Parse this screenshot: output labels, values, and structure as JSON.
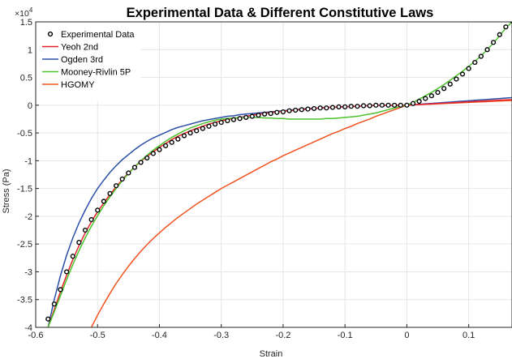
{
  "chart_data": {
    "type": "line",
    "title": "Experimental Data & Different Constitutive Laws",
    "xlabel": "Strain",
    "ylabel": "Stress (Pa)",
    "y_exponent_label": "×10",
    "y_exponent_power": "4",
    "xlim": [
      -0.6,
      0.17
    ],
    "ylim": [
      -4,
      1.5
    ],
    "xticks": [
      -0.6,
      -0.5,
      -0.4,
      -0.3,
      -0.2,
      -0.1,
      0,
      0.1
    ],
    "xtick_labels": [
      "-0.6",
      "-0.5",
      "-0.4",
      "-0.3",
      "-0.2",
      "-0.1",
      "0",
      "0.1"
    ],
    "yticks": [
      1.5,
      1,
      0.5,
      0,
      -0.5,
      -1,
      -1.5,
      -2,
      -2.5,
      -3,
      -3.5,
      -4
    ],
    "ytick_labels": [
      "1.5",
      "1",
      "0.5",
      "0",
      "-0.5",
      "-1",
      "-1.5",
      "-2",
      "-2.5",
      "-3",
      "-3.5",
      "-4"
    ],
    "grid": true,
    "legend_position": "top-left",
    "y_scale_note": "values in units of 10^4",
    "series": [
      {
        "name": "Experimental Data",
        "style": "markers",
        "color": "#000000",
        "marker_fill": "#ffffff",
        "x": [
          -0.58,
          -0.57,
          -0.56,
          -0.55,
          -0.54,
          -0.53,
          -0.52,
          -0.51,
          -0.5,
          -0.49,
          -0.48,
          -0.47,
          -0.46,
          -0.45,
          -0.44,
          -0.43,
          -0.42,
          -0.41,
          -0.4,
          -0.39,
          -0.38,
          -0.37,
          -0.36,
          -0.35,
          -0.34,
          -0.33,
          -0.32,
          -0.31,
          -0.3,
          -0.29,
          -0.28,
          -0.27,
          -0.26,
          -0.25,
          -0.24,
          -0.23,
          -0.22,
          -0.21,
          -0.2,
          -0.19,
          -0.18,
          -0.17,
          -0.16,
          -0.15,
          -0.14,
          -0.13,
          -0.12,
          -0.11,
          -0.1,
          -0.09,
          -0.08,
          -0.07,
          -0.06,
          -0.05,
          -0.04,
          -0.03,
          -0.02,
          -0.01,
          0,
          0.01,
          0.02,
          0.03,
          0.04,
          0.05,
          0.06,
          0.07,
          0.08,
          0.09,
          0.1,
          0.11,
          0.12,
          0.13,
          0.14,
          0.15,
          0.16,
          0.17
        ],
        "y": [
          -3.85,
          -3.58,
          -3.32,
          -3.0,
          -2.72,
          -2.47,
          -2.25,
          -2.06,
          -1.89,
          -1.73,
          -1.59,
          -1.45,
          -1.33,
          -1.22,
          -1.12,
          -1.03,
          -0.95,
          -0.87,
          -0.8,
          -0.73,
          -0.67,
          -0.61,
          -0.55,
          -0.5,
          -0.46,
          -0.42,
          -0.38,
          -0.34,
          -0.31,
          -0.28,
          -0.26,
          -0.24,
          -0.22,
          -0.2,
          -0.18,
          -0.16,
          -0.15,
          -0.13,
          -0.12,
          -0.1,
          -0.09,
          -0.08,
          -0.07,
          -0.06,
          -0.05,
          -0.05,
          -0.04,
          -0.03,
          -0.03,
          -0.02,
          -0.02,
          -0.01,
          -0.01,
          0.0,
          0.0,
          0.0,
          0.0,
          0.0,
          0.0,
          0.03,
          0.07,
          0.12,
          0.17,
          0.23,
          0.3,
          0.38,
          0.47,
          0.56,
          0.66,
          0.77,
          0.88,
          1.0,
          1.13,
          1.27,
          1.41,
          1.52
        ]
      },
      {
        "name": "Yeoh 2nd",
        "style": "line",
        "color": "#e6232b",
        "x": [
          -0.58,
          -0.57,
          -0.56,
          -0.55,
          -0.54,
          -0.53,
          -0.52,
          -0.51,
          -0.5,
          -0.49,
          -0.48,
          -0.47,
          -0.46,
          -0.45,
          -0.44,
          -0.43,
          -0.42,
          -0.41,
          -0.4,
          -0.39,
          -0.38,
          -0.37,
          -0.36,
          -0.35,
          -0.34,
          -0.33,
          -0.32,
          -0.31,
          -0.3,
          -0.29,
          -0.28,
          -0.27,
          -0.26,
          -0.25,
          -0.24,
          -0.23,
          -0.22,
          -0.21,
          -0.2,
          -0.19,
          -0.18,
          -0.17,
          -0.16,
          -0.15,
          -0.14,
          -0.13,
          -0.12,
          -0.11,
          -0.1,
          -0.09,
          -0.08,
          -0.07,
          -0.06,
          -0.05,
          -0.04,
          -0.03,
          -0.02,
          -0.01,
          0,
          0.01,
          0.02,
          0.03,
          0.04,
          0.05,
          0.06,
          0.07,
          0.08,
          0.09,
          0.1,
          0.11,
          0.12,
          0.13,
          0.14,
          0.15,
          0.16,
          0.17
        ],
        "y": [
          -4.0,
          -3.68,
          -3.36,
          -3.06,
          -2.78,
          -2.53,
          -2.3,
          -2.1,
          -1.92,
          -1.76,
          -1.61,
          -1.47,
          -1.34,
          -1.22,
          -1.11,
          -1.01,
          -0.92,
          -0.84,
          -0.76,
          -0.69,
          -0.62,
          -0.56,
          -0.51,
          -0.46,
          -0.42,
          -0.38,
          -0.34,
          -0.31,
          -0.28,
          -0.26,
          -0.24,
          -0.22,
          -0.2,
          -0.18,
          -0.16,
          -0.15,
          -0.13,
          -0.12,
          -0.11,
          -0.1,
          -0.09,
          -0.08,
          -0.07,
          -0.06,
          -0.05,
          -0.04,
          -0.04,
          -0.03,
          -0.03,
          -0.02,
          -0.02,
          -0.01,
          -0.01,
          0.0,
          0.0,
          0.0,
          0.0,
          0.0,
          0.0,
          0.006,
          0.012,
          0.018,
          0.024,
          0.03,
          0.036,
          0.042,
          0.048,
          0.054,
          0.06,
          0.066,
          0.072,
          0.078,
          0.084,
          0.09,
          0.096,
          0.1
        ]
      },
      {
        "name": "Ogden 3rd",
        "style": "line",
        "color": "#2b4fa8",
        "x": [
          -0.58,
          -0.57,
          -0.56,
          -0.55,
          -0.54,
          -0.53,
          -0.52,
          -0.51,
          -0.5,
          -0.49,
          -0.48,
          -0.47,
          -0.46,
          -0.45,
          -0.44,
          -0.43,
          -0.42,
          -0.41,
          -0.4,
          -0.39,
          -0.38,
          -0.37,
          -0.36,
          -0.35,
          -0.34,
          -0.33,
          -0.32,
          -0.31,
          -0.3,
          -0.29,
          -0.28,
          -0.27,
          -0.26,
          -0.25,
          -0.24,
          -0.23,
          -0.22,
          -0.21,
          -0.2,
          -0.19,
          -0.18,
          -0.17,
          -0.16,
          -0.15,
          -0.14,
          -0.13,
          -0.12,
          -0.11,
          -0.1,
          -0.09,
          -0.08,
          -0.07,
          -0.06,
          -0.05,
          -0.04,
          -0.03,
          -0.02,
          -0.01,
          0,
          0.01,
          0.02,
          0.03,
          0.04,
          0.05,
          0.06,
          0.07,
          0.08,
          0.09,
          0.1,
          0.11,
          0.12,
          0.13,
          0.14,
          0.15,
          0.16,
          0.17
        ],
        "y": [
          -4.0,
          -3.5,
          -3.07,
          -2.7,
          -2.39,
          -2.12,
          -1.89,
          -1.68,
          -1.5,
          -1.35,
          -1.21,
          -1.09,
          -0.98,
          -0.89,
          -0.8,
          -0.72,
          -0.65,
          -0.59,
          -0.54,
          -0.49,
          -0.44,
          -0.4,
          -0.37,
          -0.34,
          -0.31,
          -0.28,
          -0.26,
          -0.24,
          -0.22,
          -0.2,
          -0.19,
          -0.17,
          -0.16,
          -0.15,
          -0.14,
          -0.13,
          -0.12,
          -0.11,
          -0.1,
          -0.09,
          -0.08,
          -0.07,
          -0.06,
          -0.06,
          -0.05,
          -0.04,
          -0.04,
          -0.03,
          -0.03,
          -0.02,
          -0.02,
          -0.01,
          -0.01,
          0.0,
          0.0,
          0.0,
          0.0,
          0.0,
          0.0,
          0.008,
          0.016,
          0.024,
          0.032,
          0.04,
          0.048,
          0.056,
          0.064,
          0.072,
          0.08,
          0.088,
          0.096,
          0.104,
          0.112,
          0.12,
          0.128,
          0.135
        ]
      },
      {
        "name": "Mooney-Rivlin 5P",
        "style": "line",
        "color": "#4cc22d",
        "x": [
          -0.58,
          -0.57,
          -0.56,
          -0.55,
          -0.54,
          -0.53,
          -0.52,
          -0.51,
          -0.5,
          -0.49,
          -0.48,
          -0.47,
          -0.46,
          -0.45,
          -0.44,
          -0.43,
          -0.42,
          -0.41,
          -0.4,
          -0.39,
          -0.38,
          -0.37,
          -0.36,
          -0.35,
          -0.34,
          -0.33,
          -0.32,
          -0.31,
          -0.3,
          -0.29,
          -0.28,
          -0.27,
          -0.26,
          -0.25,
          -0.24,
          -0.23,
          -0.22,
          -0.21,
          -0.2,
          -0.19,
          -0.18,
          -0.17,
          -0.16,
          -0.15,
          -0.14,
          -0.13,
          -0.12,
          -0.11,
          -0.1,
          -0.09,
          -0.08,
          -0.07,
          -0.06,
          -0.05,
          -0.04,
          -0.03,
          -0.02,
          -0.01,
          0,
          0.01,
          0.02,
          0.03,
          0.04,
          0.05,
          0.06,
          0.07,
          0.08,
          0.09,
          0.1,
          0.11,
          0.12,
          0.13,
          0.14,
          0.15,
          0.16,
          0.17
        ],
        "y": [
          -4.0,
          -3.72,
          -3.43,
          -3.14,
          -2.87,
          -2.62,
          -2.39,
          -2.18,
          -1.99,
          -1.81,
          -1.65,
          -1.5,
          -1.36,
          -1.23,
          -1.11,
          -1.0,
          -0.9,
          -0.81,
          -0.73,
          -0.65,
          -0.58,
          -0.52,
          -0.46,
          -0.41,
          -0.37,
          -0.33,
          -0.3,
          -0.27,
          -0.25,
          -0.24,
          -0.23,
          -0.22,
          -0.22,
          -0.22,
          -0.22,
          -0.23,
          -0.23,
          -0.24,
          -0.24,
          -0.25,
          -0.25,
          -0.25,
          -0.25,
          -0.25,
          -0.25,
          -0.24,
          -0.24,
          -0.23,
          -0.22,
          -0.21,
          -0.2,
          -0.18,
          -0.16,
          -0.14,
          -0.11,
          -0.08,
          -0.05,
          -0.02,
          0.0,
          0.05,
          0.11,
          0.17,
          0.23,
          0.3,
          0.37,
          0.45,
          0.53,
          0.61,
          0.7,
          0.79,
          0.89,
          1.0,
          1.12,
          1.25,
          1.39,
          1.5
        ]
      },
      {
        "name": "HGOMY",
        "style": "line",
        "color": "#f0531f",
        "x": [
          -0.51,
          -0.5,
          -0.49,
          -0.48,
          -0.47,
          -0.46,
          -0.45,
          -0.44,
          -0.43,
          -0.42,
          -0.41,
          -0.4,
          -0.39,
          -0.38,
          -0.37,
          -0.36,
          -0.35,
          -0.34,
          -0.33,
          -0.32,
          -0.31,
          -0.3,
          -0.29,
          -0.28,
          -0.27,
          -0.26,
          -0.25,
          -0.24,
          -0.23,
          -0.22,
          -0.21,
          -0.2,
          -0.19,
          -0.18,
          -0.17,
          -0.16,
          -0.15,
          -0.14,
          -0.13,
          -0.12,
          -0.11,
          -0.1,
          -0.09,
          -0.08,
          -0.07,
          -0.06,
          -0.05,
          -0.04,
          -0.03,
          -0.02,
          -0.01,
          0,
          0.01,
          0.02,
          0.03,
          0.04,
          0.05,
          0.06,
          0.07,
          0.08,
          0.09,
          0.1,
          0.11,
          0.12,
          0.13,
          0.14,
          0.15,
          0.16,
          0.17
        ],
        "y": [
          -4.0,
          -3.78,
          -3.58,
          -3.39,
          -3.21,
          -3.05,
          -2.9,
          -2.76,
          -2.63,
          -2.51,
          -2.4,
          -2.3,
          -2.2,
          -2.11,
          -2.02,
          -1.94,
          -1.86,
          -1.78,
          -1.71,
          -1.64,
          -1.57,
          -1.5,
          -1.44,
          -1.38,
          -1.32,
          -1.26,
          -1.2,
          -1.14,
          -1.08,
          -1.02,
          -0.97,
          -0.91,
          -0.86,
          -0.81,
          -0.76,
          -0.71,
          -0.66,
          -0.61,
          -0.56,
          -0.51,
          -0.47,
          -0.42,
          -0.38,
          -0.33,
          -0.29,
          -0.25,
          -0.2,
          -0.16,
          -0.12,
          -0.08,
          -0.04,
          0.0,
          0.005,
          0.01,
          0.015,
          0.02,
          0.025,
          0.03,
          0.035,
          0.04,
          0.045,
          0.05,
          0.055,
          0.06,
          0.065,
          0.07,
          0.075,
          0.08,
          0.085
        ]
      }
    ]
  }
}
